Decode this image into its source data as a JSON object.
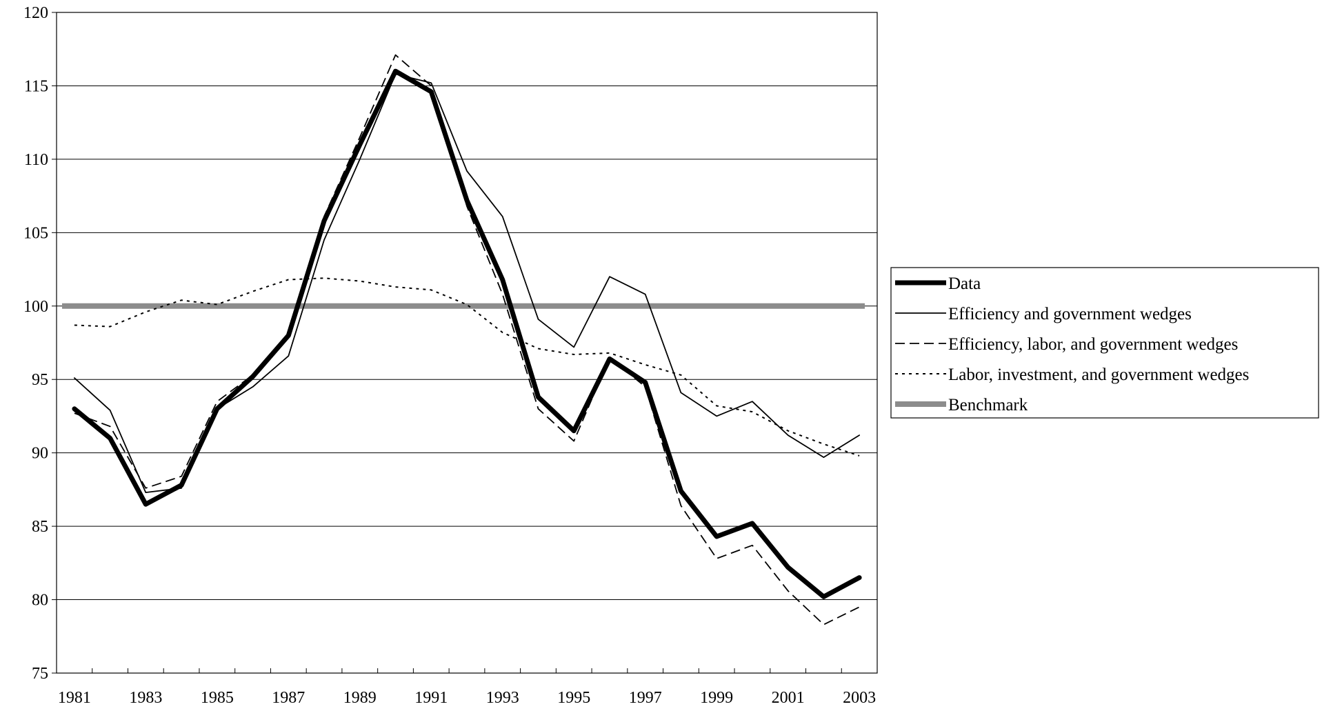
{
  "chart_data": {
    "type": "line",
    "title": "",
    "xlabel": "",
    "ylabel": "",
    "x": [
      1981,
      1982,
      1983,
      1984,
      1985,
      1986,
      1987,
      1988,
      1989,
      1990,
      1991,
      1992,
      1993,
      1994,
      1995,
      1996,
      1997,
      1998,
      1999,
      2000,
      2001,
      2002,
      2003
    ],
    "x_tick_labels": [
      "1981",
      "1983",
      "1985",
      "1987",
      "1989",
      "1991",
      "1993",
      "1995",
      "1997",
      "1999",
      "2001",
      "2003"
    ],
    "y_tick_labels": [
      "75",
      "80",
      "85",
      "90",
      "95",
      "100",
      "105",
      "110",
      "115",
      "120"
    ],
    "ylim": [
      75,
      120
    ],
    "grid": "horizontal",
    "legend_position": "right",
    "series": [
      {
        "name": "Data",
        "style": "thick-solid",
        "color": "#000000",
        "values": [
          93.0,
          91.0,
          86.5,
          87.8,
          93.0,
          95.2,
          98.0,
          105.8,
          111.0,
          116.0,
          114.6,
          107.2,
          101.8,
          93.8,
          91.5,
          96.4,
          94.8,
          87.4,
          84.3,
          85.2,
          82.2,
          80.2,
          81.5
        ]
      },
      {
        "name": "Efficiency and government wedges",
        "style": "thin-solid",
        "color": "#000000",
        "values": [
          95.1,
          92.9,
          87.3,
          87.6,
          93.0,
          94.5,
          96.6,
          104.5,
          110.0,
          115.8,
          115.2,
          109.2,
          106.1,
          99.1,
          97.2,
          102.0,
          100.8,
          94.1,
          92.5,
          93.5,
          91.2,
          89.7,
          91.2
        ]
      },
      {
        "name": "Efficiency, labor, and government wedges",
        "style": "dashed",
        "color": "#000000",
        "values": [
          92.7,
          91.8,
          87.6,
          88.4,
          93.5,
          95.3,
          97.9,
          106.1,
          111.5,
          117.1,
          115.0,
          106.8,
          100.8,
          93.0,
          90.8,
          96.5,
          94.5,
          86.4,
          82.8,
          83.7,
          80.6,
          78.3,
          79.5
        ]
      },
      {
        "name": "Labor, investment, and government wedges",
        "style": "dotted",
        "color": "#000000",
        "values": [
          98.7,
          98.6,
          99.6,
          100.4,
          100.1,
          101.0,
          101.8,
          101.9,
          101.7,
          101.3,
          101.1,
          100.1,
          98.2,
          97.1,
          96.7,
          96.8,
          96.0,
          95.3,
          93.2,
          92.8,
          91.5,
          90.6,
          89.8
        ]
      },
      {
        "name": "Benchmark",
        "style": "thick-gray",
        "color": "#8c8c8c",
        "values": [
          100,
          100,
          100,
          100,
          100,
          100,
          100,
          100,
          100,
          100,
          100,
          100,
          100,
          100,
          100,
          100,
          100,
          100,
          100,
          100,
          100,
          100,
          100
        ]
      }
    ]
  }
}
